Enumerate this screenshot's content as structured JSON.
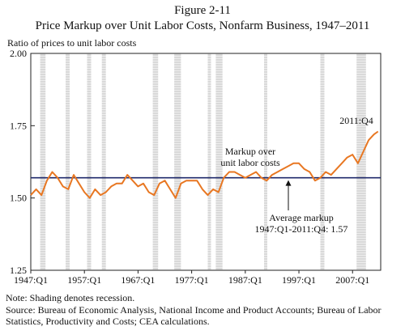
{
  "figure": {
    "number": "Figure 2-11",
    "title": "Price Markup over Unit Labor Costs, Nonfarm Business, 1947–2011",
    "ylabel": "Ratio of prices to unit labor costs"
  },
  "notes": {
    "note": "Note: Shading denotes recession.",
    "source": "Source: Bureau of Economic Analysis, National Income and Product Accounts; Bureau of Labor Statistics, Productivity and Costs; CEA calculations."
  },
  "chart_data": {
    "type": "line",
    "title": "Price Markup over Unit Labor Costs, Nonfarm Business, 1947–2011",
    "xlabel": "",
    "ylabel": "Ratio of prices to unit labor costs",
    "xlim": [
      1947.0,
      2012.25
    ],
    "ylim": [
      1.25,
      2.0
    ],
    "yticks": [
      1.25,
      1.5,
      1.75,
      2.0
    ],
    "ytick_labels": [
      "1.25",
      "1.50",
      "1.75",
      "2.00"
    ],
    "xticks": [
      1947,
      1957,
      1967,
      1977,
      1987,
      1997,
      2007
    ],
    "xtick_labels": [
      "1947:Q1",
      "1957:Q1",
      "1967:Q1",
      "1977:Q1",
      "1987:Q1",
      "1997:Q1",
      "2007:Q1"
    ],
    "grid": false,
    "line_color": "#e87722",
    "reference_color": "#1f2a6b",
    "recession_color": "#d9d9d9",
    "reference_line": {
      "value": 1.57,
      "label": [
        "Average markup",
        "1947:Q1-2011:Q4: 1.57"
      ]
    },
    "annotations": [
      {
        "text": [
          "Markup over",
          "unit labor costs"
        ]
      },
      {
        "text": [
          "2011:Q4"
        ]
      }
    ],
    "recessions": [
      [
        1948.75,
        1949.75
      ],
      [
        1953.5,
        1954.25
      ],
      [
        1957.5,
        1958.25
      ],
      [
        1960.25,
        1961.0
      ],
      [
        1969.75,
        1970.75
      ],
      [
        1973.75,
        1975.0
      ],
      [
        1980.0,
        1980.5
      ],
      [
        1981.5,
        1982.75
      ],
      [
        1990.5,
        1991.0
      ],
      [
        2001.0,
        2001.75
      ],
      [
        2007.75,
        2009.5
      ]
    ],
    "series": [
      {
        "x": [
          1947.0,
          1948.0,
          1949.0,
          1950.0,
          1951.0,
          1952.0,
          1953.0,
          1954.0,
          1955.0,
          1956.0,
          1957.0,
          1958.0,
          1959.0,
          1960.0,
          1961.0,
          1962.0,
          1963.0,
          1964.0,
          1965.0,
          1966.0,
          1967.0,
          1968.0,
          1969.0,
          1970.0,
          1971.0,
          1972.0,
          1973.0,
          1974.0,
          1975.0,
          1976.0,
          1977.0,
          1978.0,
          1979.0,
          1980.0,
          1981.0,
          1982.0,
          1983.0,
          1984.0,
          1985.0,
          1986.0,
          1987.0,
          1988.0,
          1989.0,
          1990.0,
          1991.0,
          1992.0,
          1993.0,
          1994.0,
          1995.0,
          1996.0,
          1997.0,
          1998.0,
          1999.0,
          2000.0,
          2001.0,
          2002.0,
          2003.0,
          2004.0,
          2005.0,
          2006.0,
          2007.0,
          2008.0,
          2009.0,
          2010.0,
          2011.0,
          2011.75
        ],
        "values": [
          1.51,
          1.53,
          1.51,
          1.56,
          1.59,
          1.57,
          1.54,
          1.53,
          1.58,
          1.55,
          1.52,
          1.5,
          1.53,
          1.51,
          1.52,
          1.54,
          1.55,
          1.55,
          1.58,
          1.56,
          1.54,
          1.55,
          1.52,
          1.51,
          1.55,
          1.56,
          1.53,
          1.5,
          1.55,
          1.56,
          1.56,
          1.56,
          1.53,
          1.51,
          1.53,
          1.52,
          1.57,
          1.59,
          1.59,
          1.58,
          1.57,
          1.58,
          1.59,
          1.57,
          1.56,
          1.58,
          1.59,
          1.6,
          1.61,
          1.62,
          1.62,
          1.6,
          1.59,
          1.56,
          1.57,
          1.59,
          1.58,
          1.6,
          1.62,
          1.64,
          1.65,
          1.62,
          1.66,
          1.7,
          1.72,
          1.73
        ]
      }
    ]
  }
}
